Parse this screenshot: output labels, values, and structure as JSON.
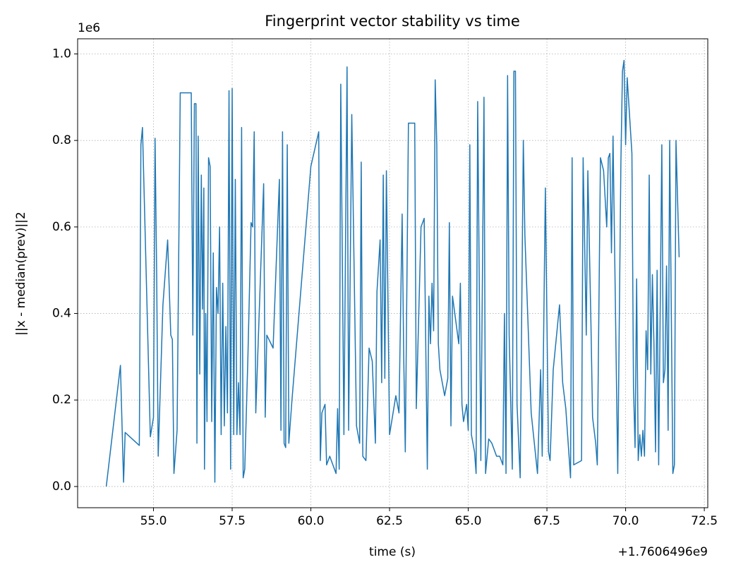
{
  "chart_data": {
    "type": "line",
    "title": "Fingerprint vector stability vs time",
    "x_label": "time (s)",
    "y_label": "||x - median(prev)||2",
    "y_offset": "1e6",
    "x_offset": "+1.7606496e9",
    "color": "#1f77b4",
    "grid": true,
    "xlim": [
      52.59,
      72.61
    ],
    "ylim": [
      -0.049,
      1.035
    ],
    "xticks": [
      {
        "value": 55,
        "label": "55.0"
      },
      {
        "value": 57.5,
        "label": "57.5"
      },
      {
        "value": 60,
        "label": "60.0"
      },
      {
        "value": 62.5,
        "label": "62.5"
      },
      {
        "value": 65,
        "label": "65.0"
      },
      {
        "value": 67.5,
        "label": "67.5"
      },
      {
        "value": 70,
        "label": "70.0"
      },
      {
        "value": 72.5,
        "label": "72.5"
      }
    ],
    "yticks": [
      {
        "value": 0,
        "label": "0.0"
      },
      0.2,
      0.4,
      0.6,
      0.8,
      {
        "value": 1,
        "label": "1.0"
      }
    ],
    "x": [
      53.5,
      53.95,
      54.05,
      54.1,
      54.55,
      54.6,
      54.65,
      54.9,
      55.0,
      55.05,
      55.1,
      55.15,
      55.3,
      55.45,
      55.55,
      55.6,
      55.65,
      55.75,
      55.85,
      56.2,
      56.25,
      56.3,
      56.35,
      56.38,
      56.42,
      56.47,
      56.52,
      56.56,
      56.6,
      56.62,
      56.66,
      56.7,
      56.75,
      56.8,
      56.85,
      56.9,
      56.95,
      57.0,
      57.05,
      57.1,
      57.15,
      57.2,
      57.25,
      57.3,
      57.35,
      57.4,
      57.45,
      57.5,
      57.55,
      57.6,
      57.65,
      57.7,
      57.75,
      57.8,
      57.85,
      57.9,
      58.0,
      58.1,
      58.15,
      58.2,
      58.25,
      58.5,
      58.55,
      58.6,
      58.8,
      59.0,
      59.05,
      59.1,
      59.15,
      59.2,
      59.25,
      59.3,
      59.4,
      60.0,
      60.25,
      60.3,
      60.35,
      60.45,
      60.5,
      60.6,
      60.8,
      60.85,
      60.9,
      60.95,
      61.05,
      61.15,
      61.2,
      61.3,
      61.45,
      61.55,
      61.6,
      61.65,
      61.75,
      61.85,
      61.95,
      62.05,
      62.1,
      62.2,
      62.25,
      62.3,
      62.35,
      62.4,
      62.5,
      62.7,
      62.75,
      62.8,
      62.9,
      62.95,
      63.0,
      63.1,
      63.3,
      63.35,
      63.5,
      63.6,
      63.7,
      63.75,
      63.8,
      63.85,
      63.9,
      63.95,
      64.0,
      64.05,
      64.1,
      64.25,
      64.35,
      64.4,
      64.45,
      64.5,
      64.7,
      64.75,
      64.8,
      64.85,
      64.95,
      65.0,
      65.05,
      65.1,
      65.2,
      65.25,
      65.3,
      65.4,
      65.5,
      65.55,
      65.65,
      65.75,
      65.9,
      66.0,
      66.1,
      66.15,
      66.2,
      66.25,
      66.3,
      66.4,
      66.45,
      66.5,
      66.55,
      66.65,
      66.75,
      66.8,
      67.0,
      67.2,
      67.3,
      67.35,
      67.45,
      67.55,
      67.6,
      67.7,
      67.9,
      68.0,
      68.1,
      68.25,
      68.3,
      68.35,
      68.6,
      68.65,
      68.75,
      68.8,
      68.9,
      68.95,
      69.0,
      69.05,
      69.1,
      69.2,
      69.3,
      69.4,
      69.45,
      69.5,
      69.55,
      69.6,
      69.75,
      69.85,
      69.9,
      69.95,
      70.0,
      70.05,
      70.2,
      70.25,
      70.3,
      70.35,
      70.4,
      70.45,
      70.5,
      70.55,
      70.6,
      70.65,
      70.7,
      70.75,
      70.8,
      70.85,
      70.9,
      70.95,
      71.0,
      71.05,
      71.15,
      71.2,
      71.25,
      71.3,
      71.35,
      71.4,
      71.5,
      71.55,
      71.6,
      71.7
    ],
    "values": [
      0.0,
      0.28,
      0.01,
      0.125,
      0.095,
      0.79,
      0.83,
      0.115,
      0.16,
      0.805,
      0.5,
      0.07,
      0.42,
      0.57,
      0.35,
      0.34,
      0.03,
      0.13,
      0.91,
      0.91,
      0.35,
      0.885,
      0.885,
      0.1,
      0.81,
      0.26,
      0.72,
      0.41,
      0.69,
      0.04,
      0.4,
      0.15,
      0.76,
      0.74,
      0.15,
      0.54,
      0.01,
      0.46,
      0.4,
      0.6,
      0.12,
      0.47,
      0.14,
      0.37,
      0.17,
      0.915,
      0.04,
      0.92,
      0.12,
      0.71,
      0.12,
      0.24,
      0.12,
      0.83,
      0.02,
      0.04,
      0.3,
      0.61,
      0.6,
      0.82,
      0.17,
      0.7,
      0.16,
      0.35,
      0.32,
      0.71,
      0.13,
      0.82,
      0.1,
      0.09,
      0.79,
      0.1,
      0.2,
      0.74,
      0.82,
      0.06,
      0.17,
      0.19,
      0.05,
      0.07,
      0.03,
      0.18,
      0.04,
      0.93,
      0.12,
      0.97,
      0.13,
      0.86,
      0.14,
      0.1,
      0.75,
      0.07,
      0.06,
      0.32,
      0.29,
      0.1,
      0.45,
      0.57,
      0.24,
      0.72,
      0.25,
      0.73,
      0.12,
      0.21,
      0.19,
      0.17,
      0.63,
      0.3,
      0.08,
      0.84,
      0.84,
      0.18,
      0.6,
      0.62,
      0.04,
      0.44,
      0.33,
      0.47,
      0.36,
      0.94,
      0.79,
      0.33,
      0.27,
      0.21,
      0.25,
      0.61,
      0.14,
      0.44,
      0.33,
      0.47,
      0.19,
      0.15,
      0.19,
      0.13,
      0.79,
      0.12,
      0.08,
      0.03,
      0.89,
      0.06,
      0.9,
      0.03,
      0.11,
      0.1,
      0.07,
      0.07,
      0.05,
      0.4,
      0.03,
      0.95,
      0.35,
      0.04,
      0.96,
      0.96,
      0.19,
      0.02,
      0.8,
      0.58,
      0.17,
      0.03,
      0.27,
      0.07,
      0.69,
      0.08,
      0.06,
      0.27,
      0.42,
      0.24,
      0.18,
      0.02,
      0.76,
      0.05,
      0.06,
      0.76,
      0.35,
      0.73,
      0.37,
      0.16,
      0.13,
      0.1,
      0.05,
      0.76,
      0.73,
      0.6,
      0.76,
      0.77,
      0.54,
      0.81,
      0.03,
      0.75,
      0.96,
      0.985,
      0.79,
      0.945,
      0.77,
      0.23,
      0.09,
      0.48,
      0.06,
      0.12,
      0.07,
      0.13,
      0.07,
      0.36,
      0.27,
      0.72,
      0.26,
      0.49,
      0.33,
      0.08,
      0.5,
      0.05,
      0.79,
      0.24,
      0.27,
      0.51,
      0.13,
      0.8,
      0.03,
      0.05,
      0.8,
      0.53
    ]
  }
}
